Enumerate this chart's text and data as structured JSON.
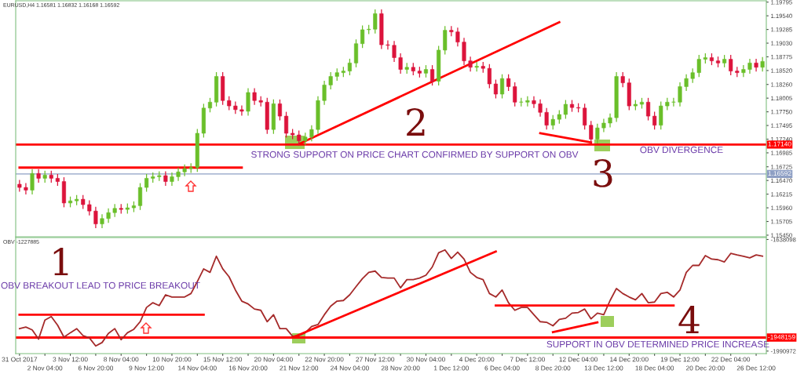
{
  "chart_data": [
    {
      "type": "candlestick",
      "title": "EURUSD,H4 1.16581 1.16832 1.16168 1.16592",
      "categories": [
        null,
        null,
        null,
        null,
        null,
        null,
        null,
        null,
        null,
        null,
        null,
        null,
        null,
        null,
        null,
        null,
        null,
        null,
        null,
        null,
        null,
        null,
        null,
        null,
        null,
        null,
        null,
        null,
        null,
        null,
        null,
        null,
        null,
        null,
        null,
        null,
        null,
        null,
        null,
        null,
        null,
        null,
        null,
        null,
        null,
        null,
        null,
        null,
        null,
        null,
        null,
        null,
        null,
        null,
        null,
        null,
        null,
        null,
        null,
        null,
        null,
        null,
        null,
        null,
        null,
        null,
        null,
        null,
        null,
        null,
        null,
        null,
        null,
        null,
        null,
        null,
        null,
        null,
        null,
        null,
        null,
        null,
        null,
        null,
        null,
        null,
        null,
        null,
        null,
        null,
        null,
        null,
        null,
        null,
        null,
        null,
        null,
        null,
        null,
        null,
        null,
        null,
        null,
        null,
        null,
        null,
        null,
        null,
        null,
        null,
        null,
        null,
        null,
        null,
        null,
        null,
        null,
        null
      ],
      "colors": [
        "#dc143c",
        "#dc143c",
        "#6abf2a",
        "#dc143c",
        "#6abf2a",
        "#dc143c",
        "#dc143c",
        "#dc143c",
        "#6abf2a",
        "#6abf2a",
        "#dc143c",
        "#dc143c",
        "#dc143c",
        "#6abf2a",
        "#6abf2a",
        "#6abf2a",
        "#dc143c",
        "#6abf2a",
        "#6abf2a",
        "#6abf2a",
        "#6abf2a",
        "#6abf2a",
        "#6abf2a",
        "#dc143c",
        "#6abf2a",
        "#6abf2a",
        "#6abf2a",
        "#6abf2a",
        "#6abf2a",
        "#6abf2a",
        "#6abf2a",
        "#6abf2a",
        "#dc143c",
        "#dc143c",
        "#dc143c",
        "#dc143c",
        "#6abf2a",
        "#dc143c",
        "#dc143c",
        "#dc143c",
        "#6abf2a",
        "#dc143c",
        "#dc143c",
        "#dc143c",
        "#dc143c",
        "#6abf2a",
        "#6abf2a",
        "#6abf2a",
        "#6abf2a",
        "#6abf2a",
        "#6abf2a",
        "#6abf2a",
        "#6abf2a",
        "#6abf2a",
        "#6abf2a",
        "#6abf2a",
        "#6abf2a",
        "#dc143c",
        "#dc143c",
        "#dc143c",
        "#dc143c",
        "#6abf2a",
        "#dc143c",
        "#dc143c",
        "#6abf2a",
        "#dc143c",
        "#6abf2a",
        "#6abf2a",
        "#dc143c",
        "#dc143c",
        "#dc143c",
        "#dc143c",
        "#6abf2a",
        "#dc143c",
        "#dc143c",
        "#dc143c",
        "#6abf2a",
        "#dc143c",
        "#dc143c",
        "#6abf2a",
        "#6abf2a",
        "#dc143c",
        "#dc143c",
        "#dc143c",
        "#6abf2a",
        "#6abf2a",
        "#6abf2a",
        "#dc143c",
        "#dc143c",
        "#dc143c",
        "#dc143c",
        "#6abf2a",
        "#6abf2a",
        "#6abf2a",
        "#6abf2a",
        "#dc143c",
        "#dc143c",
        "#6abf2a",
        "#6abf2a",
        "#dc143c",
        "#dc143c",
        "#6abf2a",
        "#6abf2a",
        "#6abf2a",
        "#6abf2a",
        "#6abf2a",
        "#6abf2a",
        "#6abf2a",
        "#6abf2a",
        "#dc143c",
        "#dc143c",
        "#6abf2a",
        "#dc143c",
        "#dc143c",
        "#6abf2a",
        "#6abf2a",
        "#dc143c",
        "#6abf2a"
      ],
      "ohlc": [
        [
          1.164,
          1.1648,
          1.1626,
          1.1634
        ],
        [
          1.1634,
          1.1642,
          1.1621,
          1.1629
        ],
        [
          1.1629,
          1.1668,
          1.1621,
          1.166
        ],
        [
          1.166,
          1.1668,
          1.1643,
          1.1651
        ],
        [
          1.1651,
          1.1665,
          1.1643,
          1.1657
        ],
        [
          1.1657,
          1.1665,
          1.1643,
          1.1651
        ],
        [
          1.1651,
          1.1659,
          1.1637,
          1.1645
        ],
        [
          1.1645,
          1.1653,
          1.1597,
          1.1605
        ],
        [
          1.1605,
          1.1617,
          1.1597,
          1.1609
        ],
        [
          1.1609,
          1.162,
          1.1601,
          1.1612
        ],
        [
          1.1612,
          1.162,
          1.1594,
          1.1602
        ],
        [
          1.1602,
          1.161,
          1.1582,
          1.159
        ],
        [
          1.159,
          1.1598,
          1.1558,
          1.1566
        ],
        [
          1.1566,
          1.1584,
          1.1558,
          1.1576
        ],
        [
          1.1576,
          1.1595,
          1.1568,
          1.1587
        ],
        [
          1.1587,
          1.1603,
          1.1579,
          1.1595
        ],
        [
          1.1595,
          1.1603,
          1.1585,
          1.1593
        ],
        [
          1.1593,
          1.1604,
          1.1585,
          1.1596
        ],
        [
          1.1596,
          1.1608,
          1.1588,
          1.16
        ],
        [
          1.16,
          1.1642,
          1.1592,
          1.1634
        ],
        [
          1.1634,
          1.1659,
          1.1626,
          1.1651
        ],
        [
          1.1651,
          1.1662,
          1.1643,
          1.1654
        ],
        [
          1.1654,
          1.1664,
          1.1646,
          1.1656
        ],
        [
          1.1656,
          1.1664,
          1.1637,
          1.1645
        ],
        [
          1.1645,
          1.1662,
          1.1637,
          1.1654
        ],
        [
          1.1654,
          1.1671,
          1.1646,
          1.1663
        ],
        [
          1.1663,
          1.1677,
          1.1655,
          1.1669
        ],
        [
          1.1669,
          1.1679,
          1.1661,
          1.1671
        ],
        [
          1.1671,
          1.1743,
          1.1663,
          1.1735
        ],
        [
          1.1735,
          1.179,
          1.1727,
          1.1782
        ],
        [
          1.1782,
          1.1801,
          1.1774,
          1.1793
        ],
        [
          1.1793,
          1.1849,
          1.1785,
          1.1841
        ],
        [
          1.1841,
          1.1849,
          1.1788,
          1.1796
        ],
        [
          1.1796,
          1.1804,
          1.1778,
          1.1786
        ],
        [
          1.1786,
          1.1794,
          1.1771,
          1.1779
        ],
        [
          1.1779,
          1.1787,
          1.1768,
          1.1776
        ],
        [
          1.1776,
          1.1819,
          1.1768,
          1.1811
        ],
        [
          1.1811,
          1.1819,
          1.1788,
          1.1796
        ],
        [
          1.1796,
          1.1804,
          1.1785,
          1.1793
        ],
        [
          1.1793,
          1.1801,
          1.1734,
          1.1742
        ],
        [
          1.1742,
          1.1798,
          1.1734,
          1.179
        ],
        [
          1.179,
          1.1798,
          1.1759,
          1.1767
        ],
        [
          1.1767,
          1.1775,
          1.1727,
          1.1735
        ],
        [
          1.1735,
          1.1743,
          1.1724,
          1.1732
        ],
        [
          1.1732,
          1.174,
          1.1713,
          1.1721
        ],
        [
          1.1721,
          1.1736,
          1.1713,
          1.1728
        ],
        [
          1.1728,
          1.175,
          1.172,
          1.1742
        ],
        [
          1.1742,
          1.1804,
          1.1734,
          1.1796
        ],
        [
          1.1796,
          1.1833,
          1.1788,
          1.1825
        ],
        [
          1.1825,
          1.1849,
          1.1817,
          1.1841
        ],
        [
          1.1841,
          1.1856,
          1.1833,
          1.1848
        ],
        [
          1.1848,
          1.1859,
          1.184,
          1.1851
        ],
        [
          1.1851,
          1.1874,
          1.1843,
          1.1866
        ],
        [
          1.1866,
          1.191,
          1.1858,
          1.1902
        ],
        [
          1.1902,
          1.1936,
          1.1894,
          1.1928
        ],
        [
          1.1928,
          1.1937,
          1.192,
          1.1929
        ],
        [
          1.1929,
          1.1966,
          1.1921,
          1.1958
        ],
        [
          1.1958,
          1.1966,
          1.1892,
          1.19
        ],
        [
          1.19,
          1.1908,
          1.1891,
          1.1899
        ],
        [
          1.1899,
          1.1907,
          1.1868,
          1.1876
        ],
        [
          1.1876,
          1.1884,
          1.1846,
          1.1854
        ],
        [
          1.1854,
          1.1866,
          1.1846,
          1.1858
        ],
        [
          1.1858,
          1.1866,
          1.1843,
          1.1851
        ],
        [
          1.1851,
          1.1859,
          1.1839,
          1.1847
        ],
        [
          1.1847,
          1.1862,
          1.1839,
          1.1854
        ],
        [
          1.1854,
          1.1862,
          1.1824,
          1.1832
        ],
        [
          1.1832,
          1.1898,
          1.1824,
          1.189
        ],
        [
          1.189,
          1.1935,
          1.1882,
          1.1927
        ],
        [
          1.1927,
          1.1935,
          1.1916,
          1.1924
        ],
        [
          1.1924,
          1.1932,
          1.1897,
          1.1905
        ],
        [
          1.1905,
          1.1913,
          1.1862,
          1.187
        ],
        [
          1.187,
          1.1878,
          1.185,
          1.1858
        ],
        [
          1.1858,
          1.1868,
          1.185,
          1.186
        ],
        [
          1.186,
          1.1868,
          1.1848,
          1.1856
        ],
        [
          1.1856,
          1.1864,
          1.1819,
          1.1827
        ],
        [
          1.1827,
          1.1835,
          1.18,
          1.1808
        ],
        [
          1.1808,
          1.1845,
          1.18,
          1.1837
        ],
        [
          1.1837,
          1.1845,
          1.1814,
          1.1822
        ],
        [
          1.1822,
          1.183,
          1.1785,
          1.1793
        ],
        [
          1.1793,
          1.1801,
          1.1785,
          1.1793
        ],
        [
          1.1793,
          1.1804,
          1.1785,
          1.1796
        ],
        [
          1.1796,
          1.1804,
          1.1782,
          1.179
        ],
        [
          1.179,
          1.1798,
          1.1766,
          1.1774
        ],
        [
          1.1774,
          1.1782,
          1.1742,
          1.175
        ],
        [
          1.175,
          1.1769,
          1.1742,
          1.1761
        ],
        [
          1.1761,
          1.1778,
          1.1753,
          1.177
        ],
        [
          1.177,
          1.1797,
          1.1762,
          1.1789
        ],
        [
          1.1789,
          1.1797,
          1.1775,
          1.1783
        ],
        [
          1.1783,
          1.1791,
          1.1774,
          1.1782
        ],
        [
          1.1782,
          1.179,
          1.1742,
          1.175
        ],
        [
          1.175,
          1.1758,
          1.1716,
          1.1724
        ],
        [
          1.1724,
          1.1753,
          1.1716,
          1.1745
        ],
        [
          1.1745,
          1.1762,
          1.1737,
          1.1754
        ],
        [
          1.1754,
          1.1772,
          1.1746,
          1.1764
        ],
        [
          1.1764,
          1.1849,
          1.1756,
          1.1841
        ],
        [
          1.1841,
          1.1849,
          1.1821,
          1.1829
        ],
        [
          1.1829,
          1.1837,
          1.1778,
          1.1786
        ],
        [
          1.1786,
          1.1797,
          1.1778,
          1.1789
        ],
        [
          1.1789,
          1.1801,
          1.1781,
          1.1793
        ],
        [
          1.1793,
          1.1801,
          1.1759,
          1.1767
        ],
        [
          1.1767,
          1.1775,
          1.1742,
          1.175
        ],
        [
          1.175,
          1.1794,
          1.1742,
          1.1786
        ],
        [
          1.1786,
          1.1801,
          1.1778,
          1.1793
        ],
        [
          1.1793,
          1.1801,
          1.1785,
          1.1793
        ],
        [
          1.1793,
          1.183,
          1.1785,
          1.1822
        ],
        [
          1.1822,
          1.1845,
          1.1814,
          1.1837
        ],
        [
          1.1837,
          1.1856,
          1.1829,
          1.1848
        ],
        [
          1.1848,
          1.1881,
          1.184,
          1.1873
        ],
        [
          1.1873,
          1.1884,
          1.1865,
          1.1876
        ],
        [
          1.1876,
          1.1884,
          1.1862,
          1.187
        ],
        [
          1.187,
          1.1878,
          1.1858,
          1.1866
        ],
        [
          1.1866,
          1.1881,
          1.1858,
          1.1873
        ],
        [
          1.1873,
          1.1881,
          1.1843,
          1.1851
        ],
        [
          1.1851,
          1.1859,
          1.184,
          1.1848
        ],
        [
          1.1848,
          1.1862,
          1.184,
          1.1854
        ],
        [
          1.1854,
          1.1874,
          1.1846,
          1.1866
        ],
        [
          1.1866,
          1.1874,
          1.185,
          1.1858
        ],
        [
          1.1858,
          1.1877,
          1.185,
          1.1869
        ]
      ],
      "series": [
        {
          "type": "line",
          "color": "#ff0000",
          "values": [
            1.1671,
            null,
            null,
            null,
            null,
            null,
            null,
            null,
            null,
            null,
            null,
            null,
            null,
            null,
            null,
            null,
            null,
            null,
            null,
            null,
            null,
            null,
            null,
            null,
            null,
            null,
            null,
            null,
            null,
            null,
            null,
            null,
            null,
            null,
            null,
            1.1671,
            null,
            null,
            null,
            null,
            null,
            null,
            null,
            null,
            null,
            null,
            null,
            null,
            null,
            null,
            null,
            null,
            null,
            null,
            null,
            null,
            null,
            null,
            null,
            null,
            null,
            null,
            null,
            null,
            null,
            null,
            null,
            null,
            null,
            null,
            null,
            null,
            null,
            null,
            null,
            null,
            null,
            null,
            null,
            null,
            null,
            null,
            null,
            null,
            null,
            null,
            null,
            null,
            null,
            null,
            null,
            null,
            null,
            null,
            null,
            null,
            null,
            null,
            null,
            null,
            null,
            null,
            null,
            null,
            null,
            null,
            null,
            null,
            null,
            null,
            null,
            null,
            null,
            null,
            null,
            null,
            null,
            null
          ]
        },
        {
          "type": "line",
          "color": "#ff0000",
          "values": [
            null,
            null,
            null,
            null,
            null,
            null,
            null,
            null,
            null,
            null,
            null,
            null,
            null,
            null,
            null,
            null,
            null,
            null,
            null,
            null,
            null,
            null,
            null,
            null,
            null,
            null,
            null,
            null,
            null,
            null,
            null,
            null,
            null,
            null,
            null,
            null,
            null,
            null,
            null,
            null,
            null,
            null,
            null,
            null,
            1.1715,
            null,
            null,
            null,
            null,
            null,
            null,
            null,
            null,
            null,
            null,
            null,
            null,
            null,
            null,
            null,
            null,
            null,
            null,
            null,
            null,
            null,
            null,
            null,
            null,
            null,
            null,
            null,
            null,
            null,
            null,
            null,
            null,
            null,
            null,
            null,
            null,
            null,
            null,
            null,
            null,
            1.1942,
            null,
            null,
            null,
            null,
            null,
            null,
            null,
            null,
            null,
            null,
            null,
            null,
            null,
            null,
            null,
            null,
            null,
            null,
            null,
            null,
            null,
            null,
            null,
            null,
            null,
            null,
            null,
            null,
            null,
            null,
            null,
            null
          ]
        },
        {
          "type": "line",
          "color": "#ff0000",
          "values": [
            null,
            null,
            null,
            null,
            null,
            null,
            null,
            null,
            null,
            null,
            null,
            null,
            null,
            null,
            null,
            null,
            null,
            null,
            null,
            null,
            null,
            null,
            null,
            null,
            null,
            null,
            null,
            null,
            null,
            null,
            null,
            null,
            null,
            null,
            null,
            null,
            null,
            null,
            null,
            null,
            null,
            null,
            null,
            null,
            null,
            null,
            null,
            null,
            null,
            null,
            null,
            null,
            null,
            null,
            null,
            null,
            null,
            null,
            null,
            null,
            null,
            null,
            null,
            null,
            null,
            null,
            null,
            null,
            null,
            null,
            null,
            null,
            null,
            null,
            null,
            null,
            null,
            null,
            null,
            null,
            null,
            null,
            1.1735,
            null,
            null,
            null,
            null,
            null,
            null,
            null,
            1.1718,
            null,
            null,
            null,
            null,
            null,
            null,
            null,
            null,
            null,
            null,
            null,
            null,
            null,
            null,
            null,
            null,
            null,
            null,
            null,
            null,
            null,
            null,
            null,
            null,
            null,
            null,
            null
          ]
        }
      ],
      "ylim": [
        1.1542,
        1.1982
      ],
      "yticks": [
        {
          "value": 1.1545,
          "label": "1.15450"
        },
        {
          "value": 1.15705,
          "label": "1.15705"
        },
        {
          "value": 1.1596,
          "label": "1.15960"
        },
        {
          "value": 1.16215,
          "label": "1.16215"
        },
        {
          "value": 1.1647,
          "label": "1.16470"
        },
        {
          "value": 1.16725,
          "label": "1.16725"
        },
        {
          "value": 1.16985,
          "label": "1.16985"
        },
        {
          "value": 1.1724,
          "label": "1.17240"
        },
        {
          "value": 1.17495,
          "label": "1.17495"
        },
        {
          "value": 1.1775,
          "label": "1.17750"
        },
        {
          "value": 1.18005,
          "label": "1.18005"
        },
        {
          "value": 1.1826,
          "label": "1.18260"
        },
        {
          "value": 1.1852,
          "label": "1.18520"
        },
        {
          "value": 1.18775,
          "label": "1.18775"
        },
        {
          "value": 1.1903,
          "label": "1.19030"
        },
        {
          "value": 1.19285,
          "label": "1.19285"
        },
        {
          "value": 1.1954,
          "label": "1.19540"
        },
        {
          "value": 1.19795,
          "label": "1.19795"
        }
      ],
      "ref_lines": [
        {
          "axis": "y",
          "value": 1.1714,
          "label": "1.17140",
          "color": "#ff0000"
        },
        {
          "axis": "y",
          "value": 1.16592,
          "label": "1.16592",
          "color": "#8e9fc4"
        }
      ],
      "annotations": [
        "2",
        "3",
        "STRONG SUPPORT ON PRICE CHART CONFIRMED BY SUPPORT ON OBV",
        "OBV DIVERGENCE"
      ],
      "tick_labels": "y",
      "grid": false,
      "legend": false
    },
    {
      "type": "line",
      "title": "OBV -1227885",
      "categories": [
        "31 Oct 2017",
        null,
        null,
        null,
        "2 Nov 04:00",
        null,
        null,
        null,
        "3 Nov 12:00",
        null,
        null,
        null,
        "6 Nov 20:00",
        null,
        null,
        null,
        "8 Nov 04:00",
        null,
        null,
        null,
        "9 Nov 12:00",
        null,
        null,
        null,
        "10 Nov 20:00",
        null,
        null,
        null,
        "14 Nov 04:00",
        null,
        null,
        null,
        "15 Nov 12:00",
        null,
        null,
        null,
        "16 Nov 20:00",
        null,
        null,
        null,
        "20 Nov 04:00",
        null,
        null,
        null,
        "21 Nov 12:00",
        null,
        null,
        null,
        "22 Nov 20:00",
        null,
        null,
        null,
        "24 Nov 04:00",
        null,
        null,
        null,
        "27 Nov 12:00",
        null,
        null,
        null,
        "28 Nov 20:00",
        null,
        null,
        null,
        "30 Nov 04:00",
        null,
        null,
        null,
        "1 Dec 12:00",
        null,
        null,
        null,
        "4 Dec 20:00",
        null,
        null,
        null,
        "6 Dec 04:00",
        null,
        null,
        null,
        "7 Dec 12:00",
        null,
        null,
        null,
        "8 Dec 20:00",
        null,
        null,
        null,
        "12 Dec 04:00",
        null,
        null,
        null,
        "13 Dec 12:00",
        null,
        null,
        null,
        "14 Dec 20:00",
        null,
        null,
        null,
        "18 Dec 04:00",
        null,
        null,
        null,
        "19 Dec 12:00",
        null,
        null,
        null,
        "20 Dec 20:00",
        null,
        null,
        null,
        "22 Dec 04:00",
        null,
        null,
        null,
        "26 Dec 12:00",
        null
      ],
      "series": [
        {
          "color": "#a52a2a",
          "values": [
            -1920000,
            -1915000,
            -1924000,
            -1953000,
            -1893000,
            -1882000,
            -1909000,
            -1947000,
            -1933000,
            -1920000,
            -1942000,
            -1949000,
            -1975000,
            -1964000,
            -1935000,
            -1920000,
            -1955000,
            -1933000,
            -1922000,
            -1898000,
            -1853000,
            -1838000,
            -1847000,
            -1813000,
            -1820000,
            -1820000,
            -1820000,
            -1809000,
            -1771000,
            -1731000,
            -1742000,
            -1691000,
            -1731000,
            -1756000,
            -1798000,
            -1833000,
            -1842000,
            -1858000,
            -1862000,
            -1898000,
            -1876000,
            -1920000,
            -1920000,
            -1944000,
            -1942000,
            -1933000,
            -1913000,
            -1907000,
            -1876000,
            -1849000,
            -1833000,
            -1831000,
            -1813000,
            -1787000,
            -1762000,
            -1742000,
            -1738000,
            -1758000,
            -1760000,
            -1760000,
            -1791000,
            -1765000,
            -1765000,
            -1760000,
            -1751000,
            -1725000,
            -1680000,
            -1671000,
            -1698000,
            -1678000,
            -1700000,
            -1742000,
            -1758000,
            -1765000,
            -1809000,
            -1820000,
            -1798000,
            -1838000,
            -1862000,
            -1853000,
            -1853000,
            -1876000,
            -1898000,
            -1900000,
            -1911000,
            -1891000,
            -1887000,
            -1871000,
            -1869000,
            -1858000,
            -1889000,
            -1871000,
            -1876000,
            -1831000,
            -1793000,
            -1809000,
            -1820000,
            -1829000,
            -1809000,
            -1838000,
            -1836000,
            -1809000,
            -1805000,
            -1820000,
            -1798000,
            -1742000,
            -1720000,
            -1720000,
            -1689000,
            -1700000,
            -1702000,
            -1709000,
            -1682000,
            -1687000,
            -1691000,
            -1696000,
            -1687000,
            -1691000
          ]
        },
        {
          "color": "#ff0000",
          "values": [
            -1876000,
            null,
            null,
            null,
            null,
            null,
            null,
            null,
            null,
            null,
            null,
            null,
            null,
            null,
            null,
            null,
            null,
            null,
            null,
            null,
            null,
            null,
            null,
            null,
            null,
            null,
            null,
            null,
            null,
            -1876000,
            null,
            null,
            null,
            null,
            null,
            null,
            null,
            null,
            null,
            null,
            null,
            null,
            null,
            null,
            null,
            null,
            null,
            null,
            null,
            null,
            null,
            null,
            null,
            null,
            null,
            null,
            null,
            null,
            null,
            null,
            null,
            null,
            null,
            null,
            null,
            null,
            null,
            null,
            null,
            null,
            null,
            null,
            null,
            null,
            null,
            null,
            null,
            null,
            null,
            null,
            null,
            null,
            null,
            null,
            null,
            null,
            null,
            null,
            null,
            null,
            null,
            null,
            null,
            null,
            null,
            null,
            null,
            null,
            null,
            null,
            null,
            null,
            null,
            null,
            null,
            null,
            null,
            null,
            null,
            null,
            null,
            null,
            null,
            null,
            null,
            null,
            null,
            null
          ]
        },
        {
          "color": "#ff0000",
          "values": [
            null,
            null,
            null,
            null,
            null,
            null,
            null,
            null,
            null,
            null,
            null,
            null,
            null,
            null,
            null,
            null,
            null,
            null,
            null,
            null,
            null,
            null,
            null,
            null,
            null,
            null,
            null,
            null,
            null,
            null,
            null,
            null,
            null,
            null,
            null,
            null,
            null,
            null,
            null,
            null,
            null,
            null,
            null,
            -1948000,
            null,
            null,
            null,
            null,
            null,
            null,
            null,
            null,
            null,
            null,
            null,
            null,
            null,
            null,
            null,
            null,
            null,
            null,
            null,
            null,
            null,
            null,
            null,
            null,
            null,
            null,
            null,
            null,
            null,
            null,
            null,
            -1676000,
            null,
            null,
            null,
            null,
            null,
            null,
            null,
            null,
            null,
            null,
            null,
            null,
            null,
            null,
            null,
            null,
            null,
            null,
            null,
            null,
            null,
            null,
            null,
            null,
            null,
            null,
            null,
            null,
            null,
            null,
            null,
            null,
            null,
            null,
            null,
            null,
            null,
            null,
            null,
            null,
            null,
            null
          ]
        },
        {
          "color": "#ff0000",
          "values": [
            null,
            null,
            null,
            null,
            null,
            null,
            null,
            null,
            null,
            null,
            null,
            null,
            null,
            null,
            null,
            null,
            null,
            null,
            null,
            null,
            null,
            null,
            null,
            null,
            null,
            null,
            null,
            null,
            null,
            null,
            null,
            null,
            null,
            null,
            null,
            null,
            null,
            null,
            null,
            null,
            null,
            null,
            null,
            null,
            null,
            null,
            null,
            null,
            null,
            null,
            null,
            null,
            null,
            null,
            null,
            null,
            null,
            null,
            null,
            null,
            null,
            null,
            null,
            null,
            null,
            null,
            null,
            null,
            null,
            null,
            null,
            null,
            null,
            null,
            null,
            -1847000,
            null,
            null,
            null,
            null,
            null,
            null,
            null,
            null,
            null,
            null,
            null,
            null,
            null,
            null,
            null,
            null,
            null,
            null,
            null,
            null,
            null,
            null,
            null,
            null,
            null,
            null,
            null,
            -1847000,
            null,
            null,
            null,
            null,
            null,
            null,
            null,
            null,
            null,
            null,
            null,
            null,
            null,
            null
          ]
        },
        {
          "color": "#ff0000",
          "values": [
            null,
            null,
            null,
            null,
            null,
            null,
            null,
            null,
            null,
            null,
            null,
            null,
            null,
            null,
            null,
            null,
            null,
            null,
            null,
            null,
            null,
            null,
            null,
            null,
            null,
            null,
            null,
            null,
            null,
            null,
            null,
            null,
            null,
            null,
            null,
            null,
            null,
            null,
            null,
            null,
            null,
            null,
            null,
            null,
            null,
            null,
            null,
            null,
            null,
            null,
            null,
            null,
            null,
            null,
            null,
            null,
            null,
            null,
            null,
            null,
            null,
            null,
            null,
            null,
            null,
            null,
            null,
            null,
            null,
            null,
            null,
            null,
            null,
            null,
            null,
            null,
            null,
            null,
            null,
            null,
            null,
            null,
            null,
            null,
            -1931000,
            null,
            null,
            null,
            null,
            null,
            null,
            -1900000,
            null,
            null,
            null,
            null,
            null,
            null,
            null,
            null,
            null,
            null,
            null,
            null,
            null,
            null,
            null,
            null,
            null,
            null,
            null,
            null,
            null,
            null,
            null,
            null,
            null,
            null
          ]
        }
      ],
      "ylim": [
        -1999000,
        -1632000
      ],
      "yticks": [
        -1990972,
        -1638098
      ],
      "ref_lines": [
        {
          "axis": "y",
          "value": -1948159,
          "label": "-1948159",
          "color": "#ff0000"
        }
      ],
      "annotations": [
        "1",
        "OBV BREAKOUT LEAD TO PRICE BREAKOUT",
        "4",
        "SUPPORT IN OBV DETERMINED PRICE INCREASE"
      ],
      "marker": "none",
      "line_style": "solid",
      "grid": false,
      "legend": false
    }
  ]
}
